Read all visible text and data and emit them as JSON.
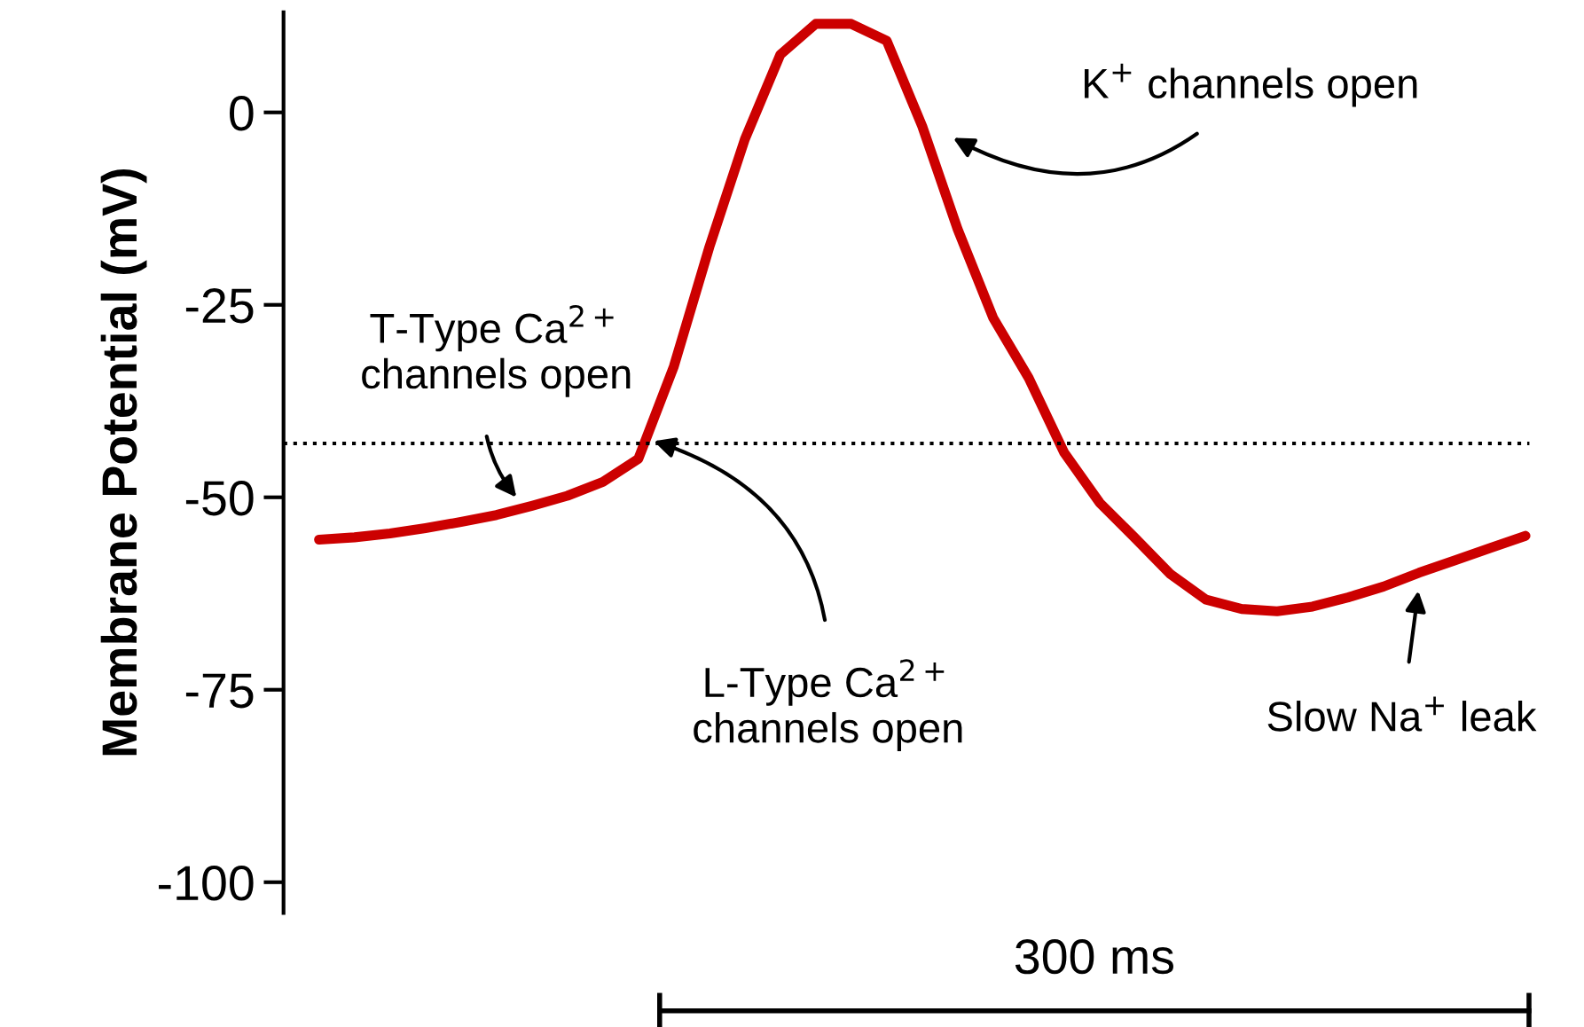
{
  "chart_data": {
    "type": "line",
    "ylabel": "Membrane Potential (mV)",
    "categories": [
      null,
      null,
      null,
      null,
      null,
      null,
      null,
      null,
      null,
      null,
      null,
      null,
      null,
      null,
      null,
      null,
      null,
      null,
      null,
      null,
      null,
      null,
      null,
      null,
      null,
      null,
      null,
      null,
      null,
      null,
      null,
      null,
      null,
      null,
      null,
      null
    ],
    "series": [
      {
        "color": "#cc0000",
        "values": [
          null,
          -55.5,
          -55.2,
          -54.7,
          -54.0,
          -53.2,
          -52.3,
          -51.1,
          -49.8,
          -48.0,
          -45.0,
          -33,
          -17.5,
          -3.5,
          7.5,
          11.5,
          11.5,
          9.3,
          -1.8,
          -15.2,
          -26.7,
          -34.5,
          -44.2,
          -50.7,
          -55.3,
          -60,
          -63.3,
          -64.5,
          -64.8,
          -64.2,
          -63,
          -61.6,
          -59.8,
          -58.2,
          -56.6,
          -55
        ]
      }
    ],
    "ylim": [
      -104,
      13
    ],
    "yticks": [
      0,
      -25,
      -50,
      -75,
      -100
    ],
    "tick_labels": "y",
    "grid": false,
    "legend": false,
    "marker": "none",
    "line_style": "solid",
    "ref_lines": [
      {
        "axis": "y",
        "value": -43,
        "color": "#000000",
        "line_style": "dotted"
      }
    ],
    "annotations": [
      "T-Type Ca$^{2+}$\nchannels open",
      "L-Type Ca$^{2+}$\nchannels open",
      "K$^{+}$ channels open",
      "Slow Na$^{+}$ leak",
      "300 ms"
    ]
  }
}
